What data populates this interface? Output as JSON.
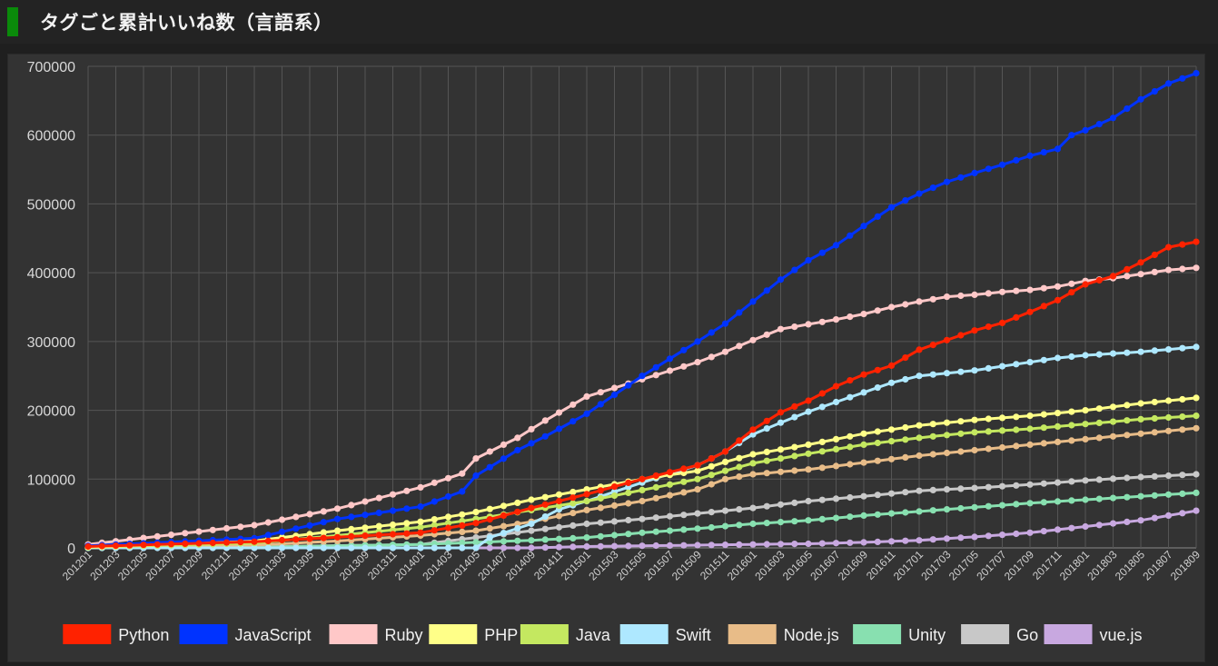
{
  "header": {
    "title": "タグごと累計いいね数（言語系）",
    "accent_color": "#0a8a0a"
  },
  "chart_data": {
    "type": "line",
    "title": "タグごと累計いいね数（言語系）",
    "xlabel": "",
    "ylabel": "",
    "ylim": [
      0,
      700000
    ],
    "yticks": [
      0,
      100000,
      200000,
      300000,
      400000,
      500000,
      600000,
      700000
    ],
    "x_start": "201201",
    "x_end": "201809",
    "n_points": 81,
    "x_tick_labels": [
      "201201",
      "201203",
      "201205",
      "201207",
      "201209",
      "201211",
      "201301",
      "201303",
      "201305",
      "201307",
      "201309",
      "201311",
      "201401",
      "201403",
      "201405",
      "201407",
      "201409",
      "201411",
      "201501",
      "201503",
      "201505",
      "201507",
      "201509",
      "201511",
      "201601",
      "201603",
      "201605",
      "201607",
      "201609",
      "201611",
      "201701",
      "201703",
      "201705",
      "201707",
      "201709",
      "201711",
      "201801",
      "201803",
      "201805",
      "201807",
      "201809"
    ],
    "grid": true,
    "legend_position": "bottom",
    "background": "#333333",
    "series": [
      {
        "name": "Python",
        "color": "#ff2200",
        "keypoints": [
          [
            "201201",
            2000
          ],
          [
            "201301",
            9000
          ],
          [
            "201401",
            22000
          ],
          [
            "201405",
            36000
          ],
          [
            "201409",
            58000
          ],
          [
            "201501",
            78000
          ],
          [
            "201505",
            100000
          ],
          [
            "201509",
            120000
          ],
          [
            "201511",
            140000
          ],
          [
            "201601",
            172000
          ],
          [
            "201603",
            197000
          ],
          [
            "201605",
            214000
          ],
          [
            "201607",
            235000
          ],
          [
            "201609",
            252000
          ],
          [
            "201611",
            265000
          ],
          [
            "201701",
            288000
          ],
          [
            "201703",
            302000
          ],
          [
            "201705",
            316000
          ],
          [
            "201707",
            327000
          ],
          [
            "201709",
            343000
          ],
          [
            "201711",
            360000
          ],
          [
            "201801",
            383000
          ],
          [
            "201803",
            395000
          ],
          [
            "201805",
            415000
          ],
          [
            "201807",
            437000
          ],
          [
            "201809",
            445000
          ]
        ]
      },
      {
        "name": "JavaScript",
        "color": "#0033ff",
        "keypoints": [
          [
            "201201",
            3000
          ],
          [
            "201301",
            14000
          ],
          [
            "201307",
            42000
          ],
          [
            "201401",
            60000
          ],
          [
            "201404",
            82000
          ],
          [
            "201405",
            105000
          ],
          [
            "201408",
            142000
          ],
          [
            "201410",
            162000
          ],
          [
            "201501",
            195000
          ],
          [
            "201505",
            250000
          ],
          [
            "201509",
            300000
          ],
          [
            "201511",
            326000
          ],
          [
            "201601",
            358000
          ],
          [
            "201603",
            390000
          ],
          [
            "201605",
            418000
          ],
          [
            "201607",
            440000
          ],
          [
            "201609",
            468000
          ],
          [
            "201611",
            495000
          ],
          [
            "201701",
            515000
          ],
          [
            "201703",
            532000
          ],
          [
            "201705",
            545000
          ],
          [
            "201707",
            557000
          ],
          [
            "201709",
            570000
          ],
          [
            "201711",
            580000
          ],
          [
            "201712",
            600000
          ],
          [
            "201801",
            607000
          ],
          [
            "201803",
            625000
          ],
          [
            "201805",
            652000
          ],
          [
            "201807",
            675000
          ],
          [
            "201809",
            690000
          ]
        ]
      },
      {
        "name": "Ruby",
        "color": "#ffc8c8",
        "keypoints": [
          [
            "201201",
            5000
          ],
          [
            "201301",
            33000
          ],
          [
            "201307",
            57000
          ],
          [
            "201401",
            88000
          ],
          [
            "201404",
            108000
          ],
          [
            "201405",
            130000
          ],
          [
            "201408",
            160000
          ],
          [
            "201410",
            185000
          ],
          [
            "201501",
            220000
          ],
          [
            "201505",
            245000
          ],
          [
            "201509",
            270000
          ],
          [
            "201511",
            285000
          ],
          [
            "201601",
            302000
          ],
          [
            "201603",
            318000
          ],
          [
            "201605",
            325000
          ],
          [
            "201607",
            332000
          ],
          [
            "201609",
            340000
          ],
          [
            "201611",
            350000
          ],
          [
            "201701",
            358000
          ],
          [
            "201703",
            365000
          ],
          [
            "201705",
            368000
          ],
          [
            "201707",
            372000
          ],
          [
            "201709",
            375000
          ],
          [
            "201711",
            380000
          ],
          [
            "201801",
            388000
          ],
          [
            "201803",
            392000
          ],
          [
            "201805",
            398000
          ],
          [
            "201807",
            404000
          ],
          [
            "201809",
            407000
          ]
        ]
      },
      {
        "name": "PHP",
        "color": "#ffff88",
        "keypoints": [
          [
            "201201",
            1000
          ],
          [
            "201301",
            10000
          ],
          [
            "201307",
            25000
          ],
          [
            "201401",
            38000
          ],
          [
            "201405",
            52000
          ],
          [
            "201409",
            70000
          ],
          [
            "201501",
            85000
          ],
          [
            "201505",
            100000
          ],
          [
            "201509",
            112000
          ],
          [
            "201511",
            125000
          ],
          [
            "201601",
            136000
          ],
          [
            "201605",
            150000
          ],
          [
            "201609",
            166000
          ],
          [
            "201701",
            178000
          ],
          [
            "201705",
            186000
          ],
          [
            "201709",
            192000
          ],
          [
            "201801",
            200000
          ],
          [
            "201805",
            210000
          ],
          [
            "201809",
            218000
          ]
        ]
      },
      {
        "name": "Java",
        "color": "#c4e860",
        "keypoints": [
          [
            "201201",
            800
          ],
          [
            "201301",
            7000
          ],
          [
            "201307",
            18000
          ],
          [
            "201401",
            30000
          ],
          [
            "201405",
            42000
          ],
          [
            "201409",
            55000
          ],
          [
            "201501",
            68000
          ],
          [
            "201505",
            84000
          ],
          [
            "201509",
            100000
          ],
          [
            "201511",
            112000
          ],
          [
            "201601",
            123000
          ],
          [
            "201605",
            137000
          ],
          [
            "201609",
            150000
          ],
          [
            "201701",
            160000
          ],
          [
            "201705",
            168000
          ],
          [
            "201709",
            173000
          ],
          [
            "201801",
            180000
          ],
          [
            "201805",
            187000
          ],
          [
            "201809",
            192000
          ]
        ]
      },
      {
        "name": "Swift",
        "color": "#aee8ff",
        "keypoints": [
          [
            "201201",
            0
          ],
          [
            "201405",
            0
          ],
          [
            "201406",
            15000
          ],
          [
            "201409",
            35000
          ],
          [
            "201411",
            56000
          ],
          [
            "201501",
            68000
          ],
          [
            "201505",
            95000
          ],
          [
            "201509",
            120000
          ],
          [
            "201511",
            140000
          ],
          [
            "201601",
            165000
          ],
          [
            "201603",
            182000
          ],
          [
            "201605",
            198000
          ],
          [
            "201607",
            212000
          ],
          [
            "201609",
            226000
          ],
          [
            "201611",
            240000
          ],
          [
            "201701",
            250000
          ],
          [
            "201705",
            258000
          ],
          [
            "201709",
            270000
          ],
          [
            "201711",
            276000
          ],
          [
            "201801",
            280000
          ],
          [
            "201805",
            285000
          ],
          [
            "201809",
            292000
          ]
        ]
      },
      {
        "name": "Node.js",
        "color": "#e8bc88",
        "keypoints": [
          [
            "201201",
            500
          ],
          [
            "201301",
            4000
          ],
          [
            "201307",
            10000
          ],
          [
            "201401",
            18000
          ],
          [
            "201405",
            25000
          ],
          [
            "201409",
            38000
          ],
          [
            "201501",
            55000
          ],
          [
            "201505",
            68000
          ],
          [
            "201509",
            85000
          ],
          [
            "201511",
            100000
          ],
          [
            "201601",
            107000
          ],
          [
            "201605",
            114000
          ],
          [
            "201609",
            124000
          ],
          [
            "201701",
            134000
          ],
          [
            "201705",
            142000
          ],
          [
            "201709",
            150000
          ],
          [
            "201801",
            158000
          ],
          [
            "201805",
            166000
          ],
          [
            "201809",
            174000
          ]
        ]
      },
      {
        "name": "Unity",
        "color": "#88e0b0",
        "keypoints": [
          [
            "201201",
            0
          ],
          [
            "201301",
            1000
          ],
          [
            "201401",
            5000
          ],
          [
            "201405",
            8000
          ],
          [
            "201409",
            11000
          ],
          [
            "201501",
            15000
          ],
          [
            "201505",
            22000
          ],
          [
            "201509",
            28000
          ],
          [
            "201601",
            35000
          ],
          [
            "201605",
            40000
          ],
          [
            "201609",
            47000
          ],
          [
            "201701",
            53000
          ],
          [
            "201705",
            59000
          ],
          [
            "201709",
            65000
          ],
          [
            "201801",
            70000
          ],
          [
            "201805",
            75000
          ],
          [
            "201809",
            80000
          ]
        ]
      },
      {
        "name": "Go",
        "color": "#c8c8c8",
        "keypoints": [
          [
            "201201",
            0
          ],
          [
            "201301",
            1500
          ],
          [
            "201401",
            5000
          ],
          [
            "201405",
            15000
          ],
          [
            "201409",
            25000
          ],
          [
            "201501",
            35000
          ],
          [
            "201505",
            42000
          ],
          [
            "201509",
            50000
          ],
          [
            "201601",
            58000
          ],
          [
            "201605",
            68000
          ],
          [
            "201609",
            75000
          ],
          [
            "201701",
            83000
          ],
          [
            "201705",
            87000
          ],
          [
            "201709",
            92000
          ],
          [
            "201801",
            98000
          ],
          [
            "201805",
            103000
          ],
          [
            "201809",
            107000
          ]
        ]
      },
      {
        "name": "vue.js",
        "color": "#c8a8e0",
        "keypoints": [
          [
            "201201",
            0
          ],
          [
            "201409",
            0
          ],
          [
            "201501",
            2000
          ],
          [
            "201601",
            5000
          ],
          [
            "201605",
            6000
          ],
          [
            "201609",
            8000
          ],
          [
            "201701",
            11000
          ],
          [
            "201705",
            16000
          ],
          [
            "201709",
            22000
          ],
          [
            "201801",
            31000
          ],
          [
            "201805",
            40000
          ],
          [
            "201809",
            54000
          ]
        ]
      }
    ]
  }
}
